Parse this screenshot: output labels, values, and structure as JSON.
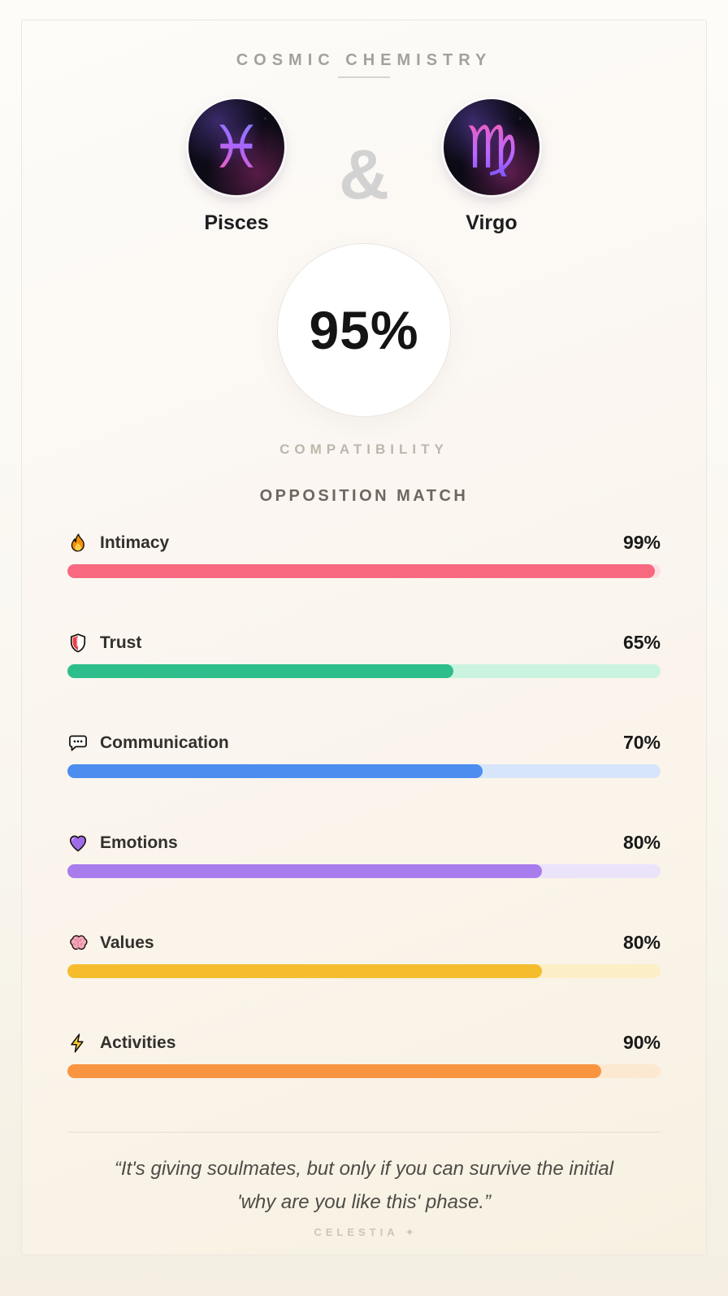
{
  "header": {
    "title": "COSMIC CHEMISTRY"
  },
  "pair": {
    "ampersand": "&",
    "left": {
      "name": "Pisces",
      "symbol": "♓"
    },
    "right": {
      "name": "Virgo",
      "symbol": "♍"
    }
  },
  "score": {
    "value": "95%",
    "caption": "COMPATIBILITY"
  },
  "match_label": "OPPOSITION MATCH",
  "chart_data": {
    "type": "bar",
    "categories": [
      "Intimacy",
      "Trust",
      "Communication",
      "Emotions",
      "Values",
      "Activities"
    ],
    "values": [
      99,
      65,
      70,
      80,
      80,
      90
    ],
    "title": "Pisces & Virgo compatibility breakdown",
    "ylim": [
      0,
      100
    ]
  },
  "stats": [
    {
      "icon": "fire-icon",
      "label": "Intimacy",
      "percent": "99%",
      "value": 99,
      "fill_color": "#f8687f",
      "track_color": "#fbe0e4"
    },
    {
      "icon": "shield-icon",
      "label": "Trust",
      "percent": "65%",
      "value": 65,
      "fill_color": "#2ebe8c",
      "track_color": "#cbf4e0"
    },
    {
      "icon": "speech-bubble-icon",
      "label": "Communication",
      "percent": "70%",
      "value": 70,
      "fill_color": "#4c8def",
      "track_color": "#d7e5fa"
    },
    {
      "icon": "heart-icon",
      "label": "Emotions",
      "percent": "80%",
      "value": 80,
      "fill_color": "#a87cec",
      "track_color": "#eae3f9"
    },
    {
      "icon": "brain-icon",
      "label": "Values",
      "percent": "80%",
      "value": 80,
      "fill_color": "#f5bd2d",
      "track_color": "#fcefc6"
    },
    {
      "icon": "lightning-icon",
      "label": "Activities",
      "percent": "90%",
      "value": 90,
      "fill_color": "#f99440",
      "track_color": "#fde8d2"
    }
  ],
  "quote": {
    "line1": "“It's giving soulmates, but only if you can survive the initial",
    "line2": "'why are you like this' phase.”"
  },
  "footer": {
    "brand": "CELESTIA",
    "sparkle": "✦"
  }
}
